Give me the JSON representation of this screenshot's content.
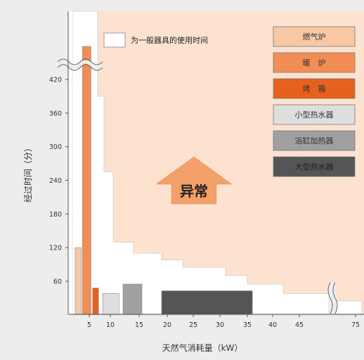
{
  "chart_data": {
    "type": "bar",
    "xlabel": "天然气消耗量（kW）",
    "ylabel": "经过时间（分）",
    "x_ticks": [
      5,
      10,
      15,
      20,
      25,
      30,
      35,
      40,
      45,
      75
    ],
    "y_ticks": [
      60,
      120,
      180,
      240,
      300,
      360,
      420
    ],
    "ylim": [
      0,
      480
    ],
    "normal_range_label": "为一般器具的使用时间",
    "anomaly_label": "异常",
    "series": [
      {
        "name": "燃气炉",
        "x": [
          2.5,
          3.6
        ],
        "value": 120,
        "color": "#f7c8a3"
      },
      {
        "name": "暖　炉",
        "x": [
          3.8,
          5.4
        ],
        "value": 520,
        "color": "#f28d55"
      },
      {
        "name": "烤　箱",
        "x": [
          5.8,
          7.2
        ],
        "value": 48,
        "color": "#e6601e"
      },
      {
        "name": "小型热水器",
        "x": [
          8.2,
          11.5
        ],
        "value": 38,
        "color": "#dedede"
      },
      {
        "name": "浴缸加热器",
        "x": [
          12.2,
          15.5
        ],
        "value": 55,
        "color": "#a0a0a0"
      },
      {
        "name": "大型热水器",
        "x": [
          19.0,
          36.0
        ],
        "value": 43,
        "color": "#555555"
      }
    ],
    "normal_boundary": [
      {
        "x": 2.0,
        "y": 520
      },
      {
        "x": 7.0,
        "y": 520
      },
      {
        "x": 7.0,
        "y": 390
      },
      {
        "x": 8.5,
        "y": 390
      },
      {
        "x": 8.5,
        "y": 255
      },
      {
        "x": 10.5,
        "y": 255
      },
      {
        "x": 10.5,
        "y": 130
      },
      {
        "x": 14.0,
        "y": 130
      },
      {
        "x": 14.0,
        "y": 110
      },
      {
        "x": 19.0,
        "y": 110
      },
      {
        "x": 19.0,
        "y": 98
      },
      {
        "x": 23.0,
        "y": 98
      },
      {
        "x": 23.0,
        "y": 85
      },
      {
        "x": 31.0,
        "y": 85
      },
      {
        "x": 31.0,
        "y": 70
      },
      {
        "x": 35.0,
        "y": 70
      },
      {
        "x": 35.0,
        "y": 55
      },
      {
        "x": 42.0,
        "y": 55
      },
      {
        "x": 42.0,
        "y": 38
      },
      {
        "x": 62.0,
        "y": 38
      },
      {
        "x": 62.0,
        "y": 25
      },
      {
        "x": 78.0,
        "y": 25
      },
      {
        "x": 78.0,
        "y": 0
      },
      {
        "x": 2.0,
        "y": 0
      }
    ]
  }
}
